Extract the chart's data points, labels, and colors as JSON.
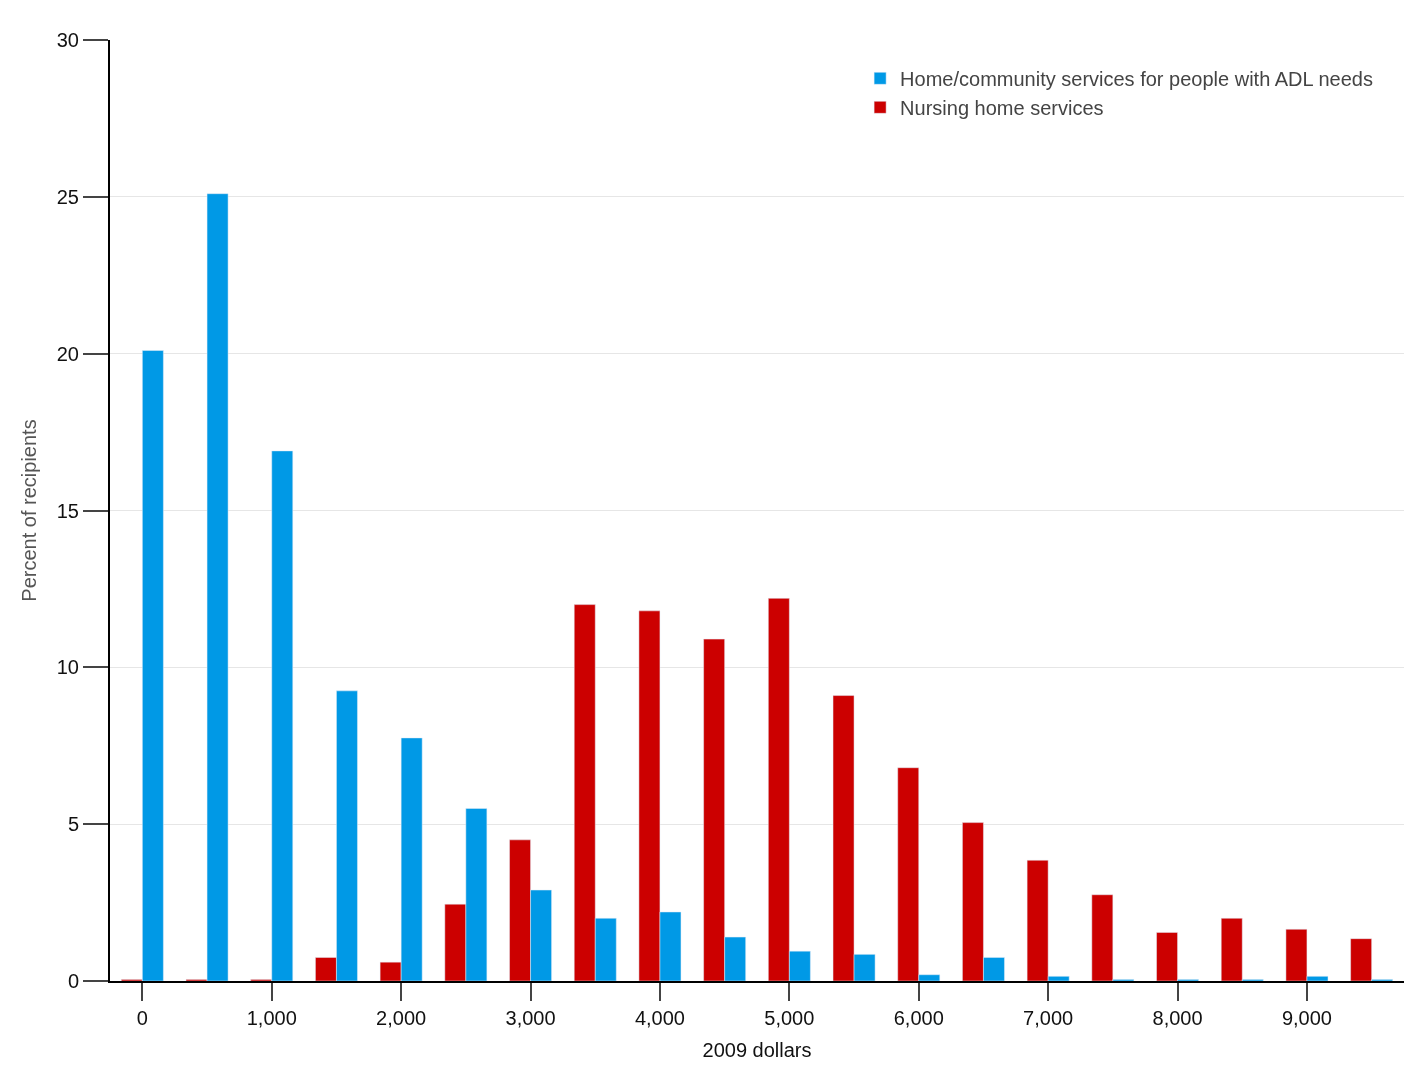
{
  "chart_data": {
    "type": "bar",
    "xlabel": "2009 dollars",
    "ylabel": "Percent of recipients",
    "categories": [
      "0",
      null,
      "1,000",
      null,
      "2,000",
      null,
      "3,000",
      null,
      "4,000",
      null,
      "5,000",
      null,
      "6,000",
      null,
      "7,000",
      null,
      "8,000",
      null,
      "9,000",
      null
    ],
    "series": [
      {
        "name": "Nursing home services",
        "color": "#cc0000",
        "values": [
          0.05,
          0.05,
          0.05,
          0.75,
          0.6,
          2.45,
          4.5,
          12.0,
          11.8,
          10.9,
          12.2,
          9.1,
          6.8,
          5.05,
          3.85,
          2.75,
          1.55,
          2.0,
          1.65,
          1.35
        ]
      },
      {
        "name": "Home/community services for people with ADL needs",
        "color": "#0099e6",
        "values": [
          20.1,
          25.1,
          16.9,
          9.25,
          7.75,
          5.5,
          2.9,
          2.0,
          2.2,
          1.4,
          0.95,
          0.85,
          0.2,
          0.75,
          0.15,
          0.05,
          0.05,
          0.05,
          0.15,
          0.05
        ]
      }
    ],
    "ylim": [
      0,
      30
    ],
    "yticks": [
      0,
      5,
      10,
      15,
      20,
      25,
      30
    ],
    "grid": "y",
    "legend": "top right"
  }
}
